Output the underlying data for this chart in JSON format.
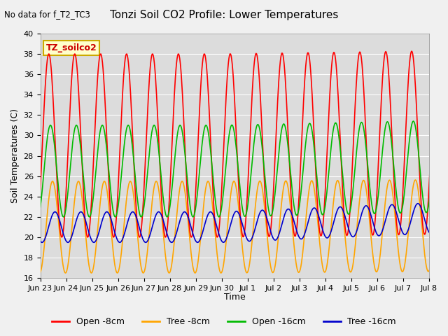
{
  "title": "Tonzi Soil CO2 Profile: Lower Temperatures",
  "no_data_text": "No data for f_T2_TC3",
  "legend_box_text": "TZ_soilco2",
  "ylabel": "Soil Temperatures (C)",
  "xlabel": "Time",
  "ylim": [
    16,
    40
  ],
  "fig_bg_color": "#f0f0f0",
  "ax_bg_color": "#dcdcdc",
  "line_colors": {
    "open8": "#ff0000",
    "tree8": "#ffa500",
    "open16": "#00bb00",
    "tree16": "#0000cc"
  },
  "legend_labels": [
    "Open -8cm",
    "Tree -8cm",
    "Open -16cm",
    "Tree -16cm"
  ],
  "x_tick_labels": [
    "Jun 23",
    "Jun 24",
    "Jun 25",
    "Jun 26",
    "Jun 27",
    "Jun 28",
    "Jun 29",
    "Jun 30",
    "Jul 1",
    "Jul 2",
    "Jul 3",
    "Jul 4",
    "Jul 5",
    "Jul 6",
    "Jul 7",
    "Jul 8"
  ],
  "yticks": [
    16,
    18,
    20,
    22,
    24,
    26,
    28,
    30,
    32,
    34,
    36,
    38,
    40
  ],
  "n_days": 16,
  "pts_per_day": 48
}
